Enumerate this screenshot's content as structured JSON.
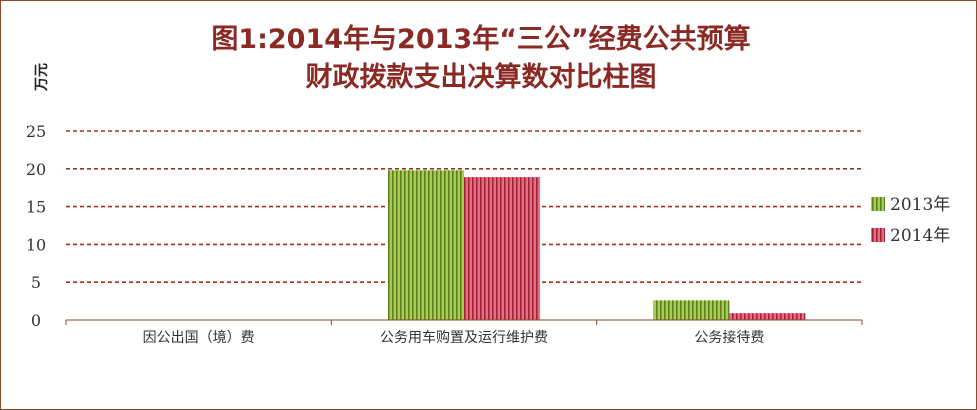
{
  "chart_data": {
    "type": "bar",
    "title_lines": [
      "图1:2014年与2013年“三公”经费公共预算",
      "财政拨款支出决算数对比柱图"
    ],
    "ylabel": "万元",
    "xlabel": "",
    "ylim": [
      0,
      25
    ],
    "yticks": [
      0,
      5,
      10,
      15,
      20,
      25
    ],
    "grid": true,
    "legend_position": "right",
    "categories": [
      "因公出国（境）费",
      "公务用车购置及运行维护费",
      "公务接待费"
    ],
    "series": [
      {
        "name": "2013年",
        "values": [
          0,
          19.8,
          2.6
        ],
        "color": "#8cb43a"
      },
      {
        "name": "2014年",
        "values": [
          0,
          18.9,
          0.9
        ],
        "color": "#d2435a"
      }
    ]
  }
}
